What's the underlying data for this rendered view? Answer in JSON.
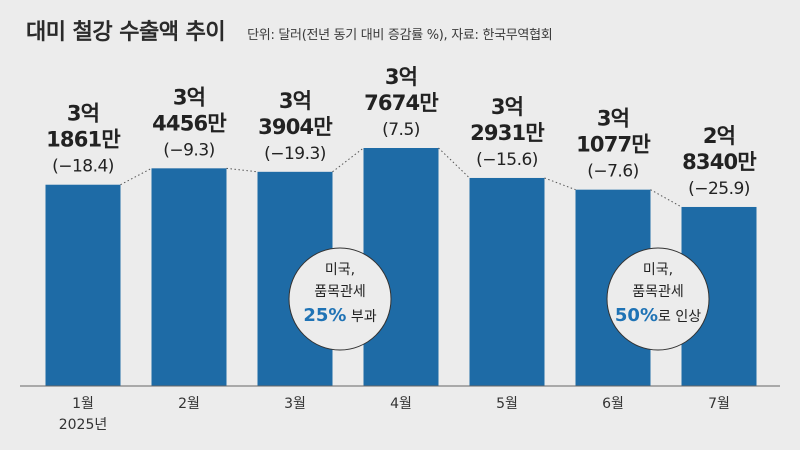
{
  "header": {
    "title": "대미 철강 수출액 추이",
    "subtitle": "단위: 달러(전년 동기 대비 증감률 %), 자료: 한국무역협회"
  },
  "chart_data": {
    "type": "bar",
    "categories": [
      "1월",
      "2월",
      "3월",
      "4월",
      "5월",
      "6월",
      "7월"
    ],
    "year_label": "2025년",
    "values": [
      318610000,
      344560000,
      339040000,
      376740000,
      329310000,
      310770000,
      283400000
    ],
    "value_labels": [
      [
        "3억",
        "1861만"
      ],
      [
        "3억",
        "4456만"
      ],
      [
        "3억",
        "3904만"
      ],
      [
        "3억",
        "7674만"
      ],
      [
        "3억",
        "2931만"
      ],
      [
        "3억",
        "1077만"
      ],
      [
        "2억",
        "8340만"
      ]
    ],
    "yoy_change_pct": [
      -18.4,
      -9.3,
      -19.3,
      7.5,
      -15.6,
      -7.6,
      -25.9
    ],
    "change_labels": [
      "(−18.4)",
      "(−9.3)",
      "(−19.3)",
      "(7.5)",
      "(−15.6)",
      "(−7.6)",
      "(−25.9)"
    ],
    "bar_color": "#1e6ba6",
    "ylim": [
      0,
      400000000
    ],
    "annotations": [
      {
        "after_category": "3월",
        "lines": [
          "미국,",
          "품목관세"
        ],
        "pct": "25%",
        "suffix": " 부과"
      },
      {
        "after_category": "6월",
        "lines": [
          "미국,",
          "품목관세"
        ],
        "pct": "50%",
        "suffix": "로 인상"
      }
    ]
  }
}
